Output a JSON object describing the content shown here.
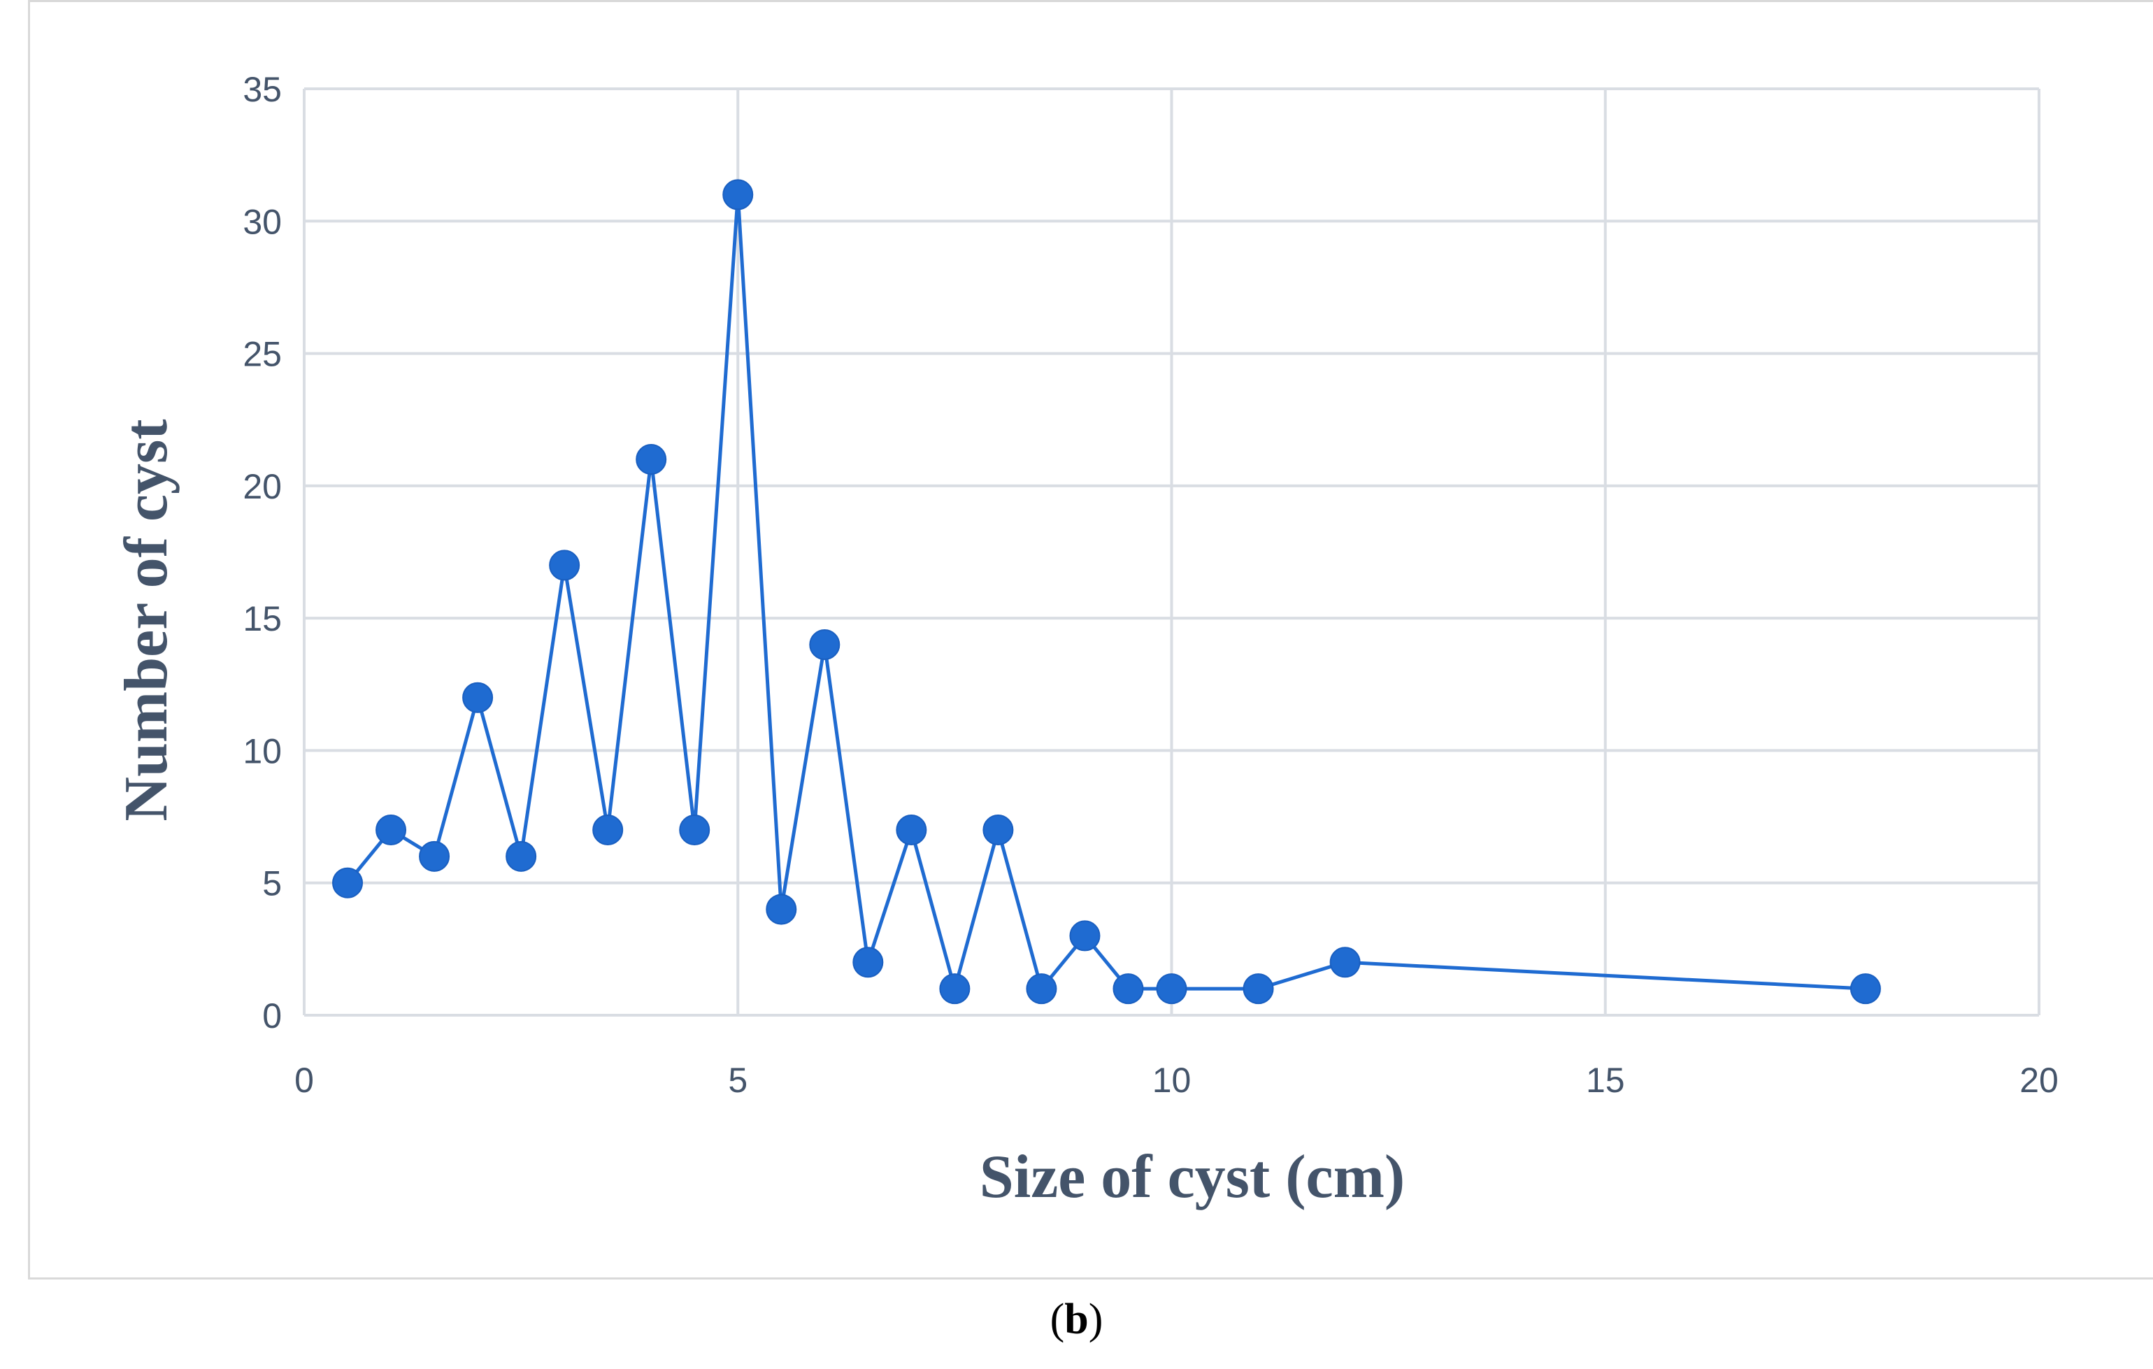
{
  "chart_data": {
    "type": "line",
    "title": "",
    "xlabel": "Size of cyst (cm)",
    "ylabel": "Number of cyst",
    "xlim": [
      0,
      20
    ],
    "ylim": [
      0,
      35
    ],
    "xticks": [
      0,
      5,
      10,
      15,
      20
    ],
    "yticks": [
      0,
      5,
      10,
      15,
      20,
      25,
      30,
      35
    ],
    "grid": true,
    "legend": "none",
    "series": [
      {
        "color": "#1f6bd1",
        "points": [
          {
            "x": 0.5,
            "y": 5
          },
          {
            "x": 1,
            "y": 7
          },
          {
            "x": 1.5,
            "y": 6
          },
          {
            "x": 2,
            "y": 12
          },
          {
            "x": 2.5,
            "y": 6
          },
          {
            "x": 3,
            "y": 17
          },
          {
            "x": 3.5,
            "y": 7
          },
          {
            "x": 4,
            "y": 21
          },
          {
            "x": 4.5,
            "y": 7
          },
          {
            "x": 5,
            "y": 31
          },
          {
            "x": 5.5,
            "y": 4
          },
          {
            "x": 6,
            "y": 14
          },
          {
            "x": 6.5,
            "y": 2
          },
          {
            "x": 7,
            "y": 7
          },
          {
            "x": 7.5,
            "y": 1
          },
          {
            "x": 8,
            "y": 7
          },
          {
            "x": 8.5,
            "y": 1
          },
          {
            "x": 9,
            "y": 3
          },
          {
            "x": 9.5,
            "y": 1
          },
          {
            "x": 10,
            "y": 1
          },
          {
            "x": 11,
            "y": 1
          },
          {
            "x": 12,
            "y": 2
          },
          {
            "x": 18,
            "y": 1
          }
        ]
      }
    ]
  },
  "caption": {
    "open": "(",
    "letter": "b",
    "close": ")"
  }
}
